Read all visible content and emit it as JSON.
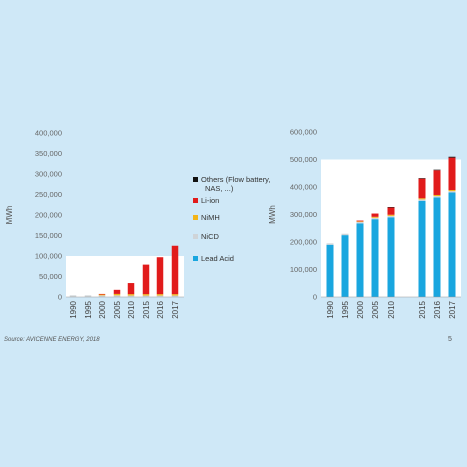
{
  "source": "Source: AVICENNE ENERGY, 2018",
  "page_number": "5",
  "legend": [
    {
      "label": "Others (Flow battery, NAS, ...)",
      "color": "#111111"
    },
    {
      "label": "Li-ion",
      "color": "#e11b1b"
    },
    {
      "label": "NiMH",
      "color": "#f2b418"
    },
    {
      "label": "NiCD",
      "color": "#cfd4d8"
    },
    {
      "label": "Lead Acid",
      "color": "#19a6df"
    }
  ],
  "chart_data": [
    {
      "type": "bar",
      "stacked": true,
      "ylabel": "MWh",
      "ylim": [
        0,
        400000
      ],
      "yticks": [
        "0",
        "50,000",
        "100,000",
        "150,000",
        "200,000",
        "250,000",
        "300,000",
        "350,000",
        "400,000"
      ],
      "categories": [
        "1990",
        "1995",
        "2000",
        "2005",
        "2010",
        "2015",
        "2016",
        "2017"
      ],
      "series": [
        {
          "name": "NiCD",
          "values": [
            4000,
            4000,
            4000,
            4000,
            3500,
            3500,
            3500,
            3500
          ]
        },
        {
          "name": "NiMH",
          "values": [
            0,
            0,
            2000,
            3500,
            3500,
            3500,
            3500,
            3500
          ]
        },
        {
          "name": "Li-ion",
          "values": [
            0,
            0,
            1500,
            10000,
            27000,
            72000,
            90000,
            118000
          ]
        }
      ]
    },
    {
      "type": "bar",
      "stacked": true,
      "ylabel": "MWh",
      "ylim": [
        0,
        600000
      ],
      "yticks": [
        "0",
        "100,000",
        "200,000",
        "300,000",
        "400,000",
        "500,000",
        "600,000"
      ],
      "categories": [
        "1990",
        "1995",
        "2000",
        "2005",
        "2010",
        "2015",
        "2016",
        "2017"
      ],
      "series": [
        {
          "name": "Lead Acid",
          "values": [
            190000,
            225000,
            268000,
            283000,
            290000,
            350000,
            362000,
            380000
          ]
        },
        {
          "name": "NiCD",
          "values": [
            5000,
            5000,
            5000,
            5000,
            5000,
            5000,
            5000,
            5000
          ]
        },
        {
          "name": "NiMH",
          "values": [
            0,
            0,
            2000,
            3500,
            4000,
            4000,
            4000,
            4000
          ]
        },
        {
          "name": "Li-ion",
          "values": [
            0,
            0,
            3000,
            12000,
            27000,
            72000,
            90000,
            118000
          ]
        },
        {
          "name": "Others (Flow battery, NAS, ...)",
          "values": [
            0,
            0,
            0,
            0,
            1000,
            1000,
            2000,
            3000
          ]
        }
      ]
    }
  ]
}
